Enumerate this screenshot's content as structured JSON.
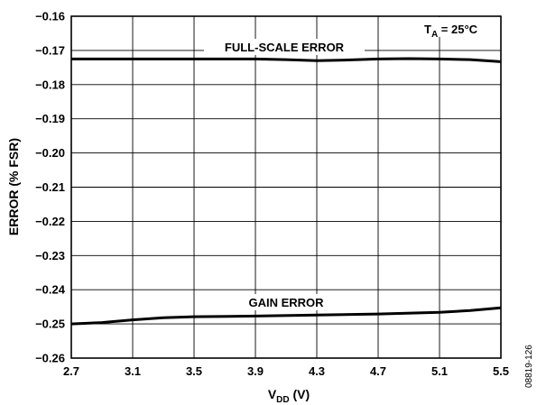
{
  "chart_data": {
    "type": "line",
    "ylabel": "ERROR (% FSR)",
    "xlabel": {
      "main": "V",
      "sub": "DD",
      "unit": " (V)"
    },
    "xlim": [
      2.7,
      5.5
    ],
    "ylim": [
      -0.26,
      -0.16
    ],
    "x_ticks": [
      "2.7",
      "3.1",
      "3.5",
      "3.9",
      "4.3",
      "4.7",
      "5.1",
      "5.5"
    ],
    "y_ticks": [
      "−0.16",
      "−0.17",
      "−0.18",
      "−0.19",
      "−0.20",
      "−0.21",
      "−0.22",
      "−0.23",
      "−0.24",
      "−0.25",
      "−0.26"
    ],
    "grid": true,
    "condition": {
      "main": "T",
      "sub": "A",
      "rest": " = 25°C"
    },
    "series": [
      {
        "name": "FULL-SCALE ERROR",
        "x": [
          2.7,
          3.1,
          3.5,
          3.9,
          4.1,
          4.3,
          4.5,
          4.7,
          4.9,
          5.1,
          5.3,
          5.5
        ],
        "y": [
          -0.1725,
          -0.1725,
          -0.1725,
          -0.1725,
          -0.1727,
          -0.173,
          -0.1728,
          -0.1725,
          -0.1724,
          -0.1725,
          -0.1727,
          -0.1733
        ]
      },
      {
        "name": "GAIN ERROR",
        "x": [
          2.7,
          2.9,
          3.1,
          3.3,
          3.5,
          3.9,
          4.3,
          4.7,
          5.1,
          5.3,
          5.5
        ],
        "y": [
          -0.25,
          -0.2496,
          -0.2488,
          -0.2482,
          -0.2479,
          -0.2477,
          -0.2474,
          -0.2471,
          -0.2466,
          -0.2461,
          -0.2453
        ]
      }
    ]
  },
  "figure_id": "08819-126"
}
